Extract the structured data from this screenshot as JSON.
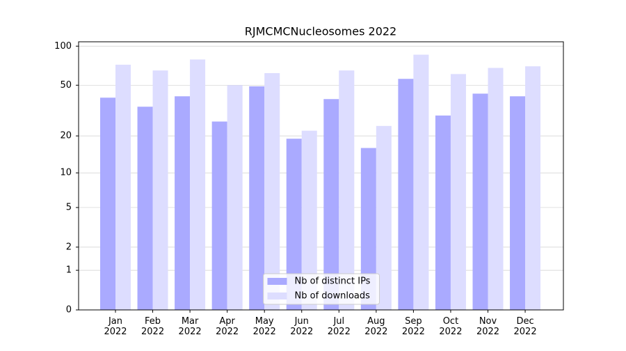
{
  "chart_data": {
    "type": "bar",
    "title": "RJMCMCNucleosomes 2022",
    "categories": [
      "Jan\n2022",
      "Feb\n2022",
      "Mar\n2022",
      "Apr\n2022",
      "May\n2022",
      "Jun\n2022",
      "Jul\n2022",
      "Aug\n2022",
      "Sep\n2022",
      "Oct\n2022",
      "Nov\n2022",
      "Dec\n2022"
    ],
    "series": [
      {
        "name": "Nb of distinct IPs",
        "color": "#aaaaff",
        "values": [
          40,
          34,
          41,
          26,
          49,
          19,
          39,
          16,
          56,
          29,
          43,
          41
        ]
      },
      {
        "name": "Nb of downloads",
        "color": "#ddddff",
        "values": [
          72,
          65,
          79,
          50,
          62,
          22,
          65,
          24,
          86,
          61,
          68,
          70
        ]
      }
    ],
    "yscale": "symlog",
    "ylim": [
      0,
      108
    ],
    "yticks": [
      0,
      1,
      2,
      5,
      10,
      20,
      50,
      100
    ],
    "grid": true,
    "legend": "lower center"
  }
}
